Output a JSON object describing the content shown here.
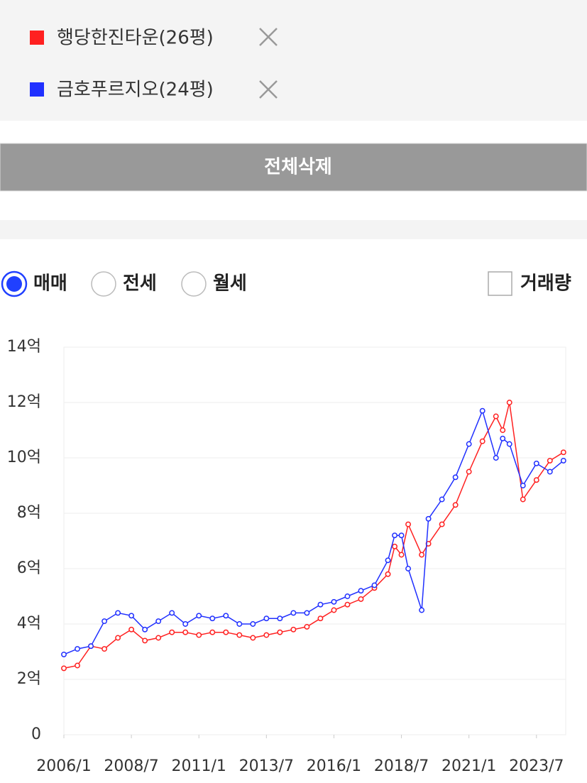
{
  "delete_all": "전체삭제",
  "radios": {
    "options": [
      "매매",
      "전세",
      "월세"
    ],
    "selected": 0
  },
  "checkbox": "거래량",
  "chart_data": {
    "type": "line",
    "x": [
      "2006/1",
      "2006/7",
      "2007/1",
      "2007/7",
      "2008/1",
      "2008/7",
      "2009/1",
      "2009/7",
      "2010/1",
      "2010/7",
      "2011/1",
      "2011/7",
      "2012/1",
      "2012/7",
      "2013/1",
      "2013/7",
      "2014/1",
      "2014/7",
      "2015/1",
      "2015/7",
      "2016/1",
      "2016/7",
      "2017/1",
      "2017/7",
      "2018/1",
      "2018/4",
      "2018/7",
      "2018/10",
      "2019/4",
      "2019/7",
      "2020/1",
      "2020/7",
      "2021/1",
      "2021/7",
      "2022/1",
      "2022/4",
      "2022/7",
      "2023/1",
      "2023/7",
      "2024/1",
      "2024/7"
    ],
    "series": [
      {
        "name": "행당한진타운(26평)",
        "color": "#ff2020",
        "values": [
          2.4,
          2.5,
          3.2,
          3.1,
          3.5,
          3.8,
          3.4,
          3.5,
          3.7,
          3.7,
          3.6,
          3.7,
          3.7,
          3.6,
          3.5,
          3.6,
          3.7,
          3.8,
          3.9,
          4.2,
          4.5,
          4.7,
          4.9,
          5.3,
          5.8,
          6.8,
          6.5,
          7.6,
          6.5,
          6.9,
          7.6,
          8.3,
          9.5,
          10.6,
          11.5,
          11.0,
          12.0,
          8.5,
          9.2,
          9.9,
          10.2
        ]
      },
      {
        "name": "금호푸르지오(24평)",
        "color": "#2030ff",
        "values": [
          2.9,
          3.1,
          3.2,
          4.1,
          4.4,
          4.3,
          3.8,
          4.1,
          4.4,
          4.0,
          4.3,
          4.2,
          4.3,
          4.0,
          4.0,
          4.2,
          4.2,
          4.4,
          4.4,
          4.7,
          4.8,
          5.0,
          5.2,
          5.4,
          6.3,
          7.2,
          7.2,
          6.0,
          4.5,
          7.8,
          8.5,
          9.3,
          10.5,
          11.7,
          10.0,
          10.7,
          10.5,
          9.0,
          9.8,
          9.5,
          9.9
        ]
      }
    ],
    "ylim": [
      0,
      14
    ],
    "yticks": [
      0,
      {
        "value": 2,
        "label": "2억"
      },
      {
        "value": 4,
        "label": "4억"
      },
      {
        "value": 6,
        "label": "6억"
      },
      {
        "value": 8,
        "label": "8억"
      },
      {
        "value": 10,
        "label": "10억"
      },
      {
        "value": 12,
        "label": "12억"
      },
      {
        "value": 14,
        "label": "14억"
      }
    ],
    "xlim": [
      "2006/1",
      "2024/8"
    ],
    "xticks": [
      "2006/1",
      "2008/7",
      "2011/1",
      "2013/7",
      "2016/1",
      "2018/7",
      "2021/1",
      "2023/7"
    ],
    "grid": true
  }
}
